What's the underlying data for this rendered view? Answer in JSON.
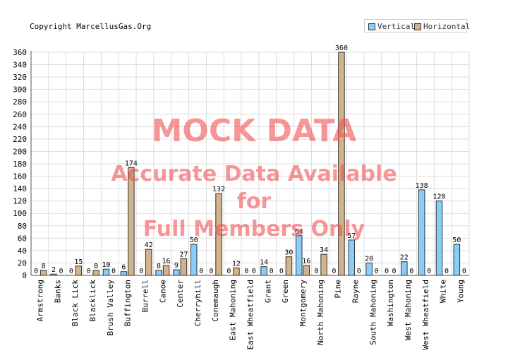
{
  "copyright": "Copyright MarcellusGas.Org",
  "legend": {
    "vertical_label": "Vertical",
    "horizontal_label": "Horizontal"
  },
  "watermark": {
    "line1": "MOCK DATA",
    "line2": "Accurate Data Available",
    "line3": "for",
    "line4": "Full Members Only"
  },
  "colors": {
    "vertical": "#87cefa",
    "horizontal": "#d2b48c",
    "grid": "#dddddd"
  },
  "chart_data": {
    "type": "bar",
    "title": "",
    "xlabel": "",
    "ylabel": "",
    "ylim": [
      0,
      360
    ],
    "yticks": [
      0,
      20,
      40,
      60,
      80,
      100,
      120,
      140,
      160,
      180,
      200,
      220,
      240,
      260,
      280,
      300,
      320,
      340,
      360
    ],
    "grid": true,
    "legend_position": "top-right",
    "categories": [
      "Armstrong",
      "Banks",
      "Black Lick",
      "Blacklick",
      "Brush Valley",
      "Buffington",
      "Burrell",
      "Canoe",
      "Center",
      "Cherryhill",
      "Conemaugh",
      "East Mahoning",
      "East Wheatfield",
      "Grant",
      "Green",
      "Montgomery",
      "North Mahoning",
      "Pine",
      "Rayne",
      "South Mahoning",
      "Washington",
      "West Mahoning",
      "West Wheatfield",
      "White",
      "Young"
    ],
    "series": [
      {
        "name": "Vertical",
        "values": [
          0,
          2,
          0,
          0,
          10,
          6,
          0,
          8,
          9,
          50,
          0,
          0,
          0,
          14,
          0,
          64,
          0,
          0,
          57,
          20,
          0,
          22,
          138,
          120,
          50
        ]
      },
      {
        "name": "Horizontal",
        "values": [
          8,
          0,
          15,
          8,
          0,
          174,
          42,
          16,
          27,
          0,
          132,
          12,
          0,
          0,
          30,
          16,
          34,
          360,
          0,
          0,
          0,
          0,
          0,
          0,
          0
        ]
      }
    ]
  }
}
